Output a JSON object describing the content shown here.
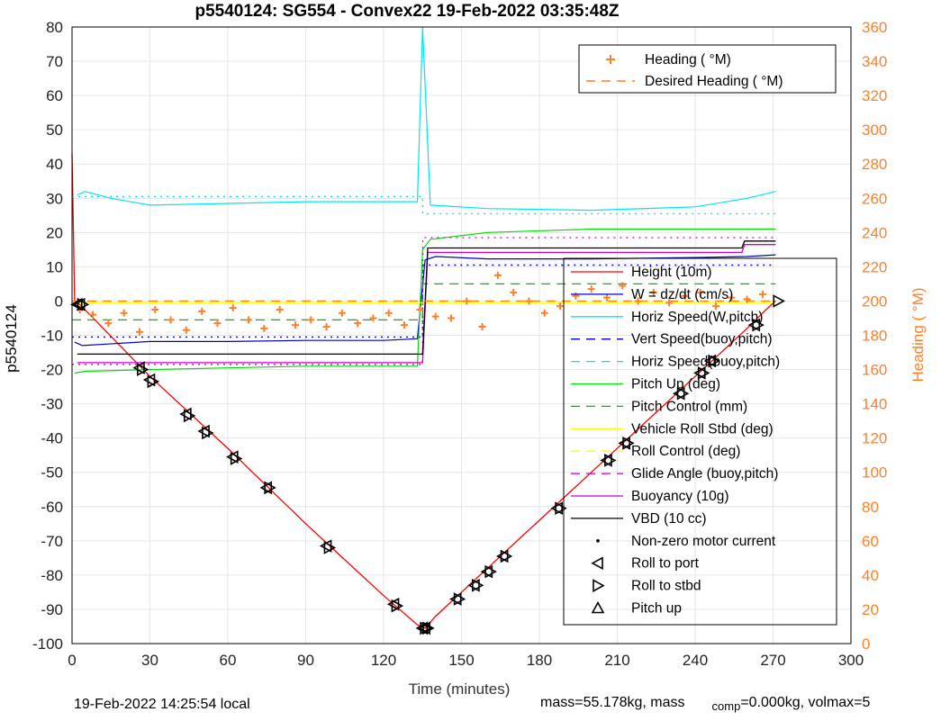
{
  "colors": {
    "height": "#ff0000",
    "w": "#0000cc",
    "horiz_speed": "#00e5ee",
    "vert_speed": "#0000ff",
    "pitch_up": "#00dd00",
    "pitch_control": "#00bb00",
    "roll_stbd": "#ffff00",
    "roll_control": "#ffff00",
    "glide_angle": "#cc00cc",
    "buoyancy": "#cc00cc",
    "vbd": "#000000",
    "heading": "#ff7f27",
    "right_axis": "#ff7f27"
  },
  "chart_data": {
    "type": "line",
    "title": "p5540124: SG554 - Convex22 19-Feb-2022 03:35:48Z",
    "xlabel": "Time (minutes)",
    "ylabel": "p5540124",
    "y2label": "Heading ( °M)",
    "xlim": [
      0,
      300
    ],
    "ylim": [
      -100,
      80
    ],
    "y2lim": [
      0,
      360
    ],
    "xticks": [
      "0",
      "30",
      "60",
      "90",
      "120",
      "150",
      "180",
      "210",
      "240",
      "270",
      "300"
    ],
    "yticks": [
      "80",
      "70",
      "60",
      "50",
      "40",
      "30",
      "20",
      "10",
      "0",
      "-10",
      "-20",
      "-30",
      "-40",
      "-50",
      "-60",
      "-70",
      "-80",
      "-90",
      "-100"
    ],
    "y2ticks": [
      "360",
      "340",
      "320",
      "300",
      "280",
      "260",
      "240",
      "220",
      "200",
      "180",
      "160",
      "140",
      "120",
      "100",
      "80",
      "60",
      "40",
      "20",
      "0"
    ],
    "grid": true,
    "legend_top": [
      {
        "label": "Heading ( °M)",
        "marker": "+"
      },
      {
        "label": "Desired Heading ( °M)",
        "marker": "dashed"
      }
    ],
    "legend_main": [
      {
        "label": "Height (10m)"
      },
      {
        "label": "W = dz/dt (cm/s)"
      },
      {
        "label": "Horiz Speed(W,pitch)"
      },
      {
        "label": "Vert Speed(buoy,pitch)"
      },
      {
        "label": "Horiz Speed(buoy,pitch)"
      },
      {
        "label": "Pitch Up (deg)"
      },
      {
        "label": "Pitch Control (mm)"
      },
      {
        "label": "Vehicle Roll Stbd (deg)"
      },
      {
        "label": "Roll Control (deg)"
      },
      {
        "label": "Glide Angle (buoy,pitch)"
      },
      {
        "label": "Buoyancy (10g)"
      },
      {
        "label": "VBD (10 cc)"
      },
      {
        "label": "Non-zero motor current"
      },
      {
        "label": "Roll to port"
      },
      {
        "label": "Roll to stbd"
      },
      {
        "label": "Pitch up"
      }
    ],
    "series": [
      {
        "name": "Height (10m)",
        "x": [
          0,
          1,
          3,
          30,
          60,
          90,
          120,
          133,
          136,
          140,
          160,
          180,
          200,
          220,
          240,
          260,
          268,
          271
        ],
        "y": [
          43,
          0,
          -1,
          -22,
          -43,
          -65,
          -86,
          -94.5,
          -95.5,
          -92,
          -78,
          -64,
          -50,
          -36,
          -22,
          -8,
          -2,
          0
        ]
      },
      {
        "name": "W = dz/dt (cm/s)",
        "x": [
          1,
          4,
          30,
          60,
          90,
          120,
          133,
          136,
          140,
          160,
          180,
          200,
          220,
          240,
          260,
          271
        ],
        "y": [
          -12,
          -13,
          -11.8,
          -11.8,
          -11.5,
          -11.5,
          -11,
          12,
          13,
          12.3,
          12.3,
          12.3,
          12.5,
          12.7,
          13,
          13.5
        ]
      },
      {
        "name": "Horiz Speed(W,pitch)",
        "x": [
          2,
          5,
          15,
          30,
          60,
          90,
          120,
          133,
          135,
          138,
          160,
          200,
          240,
          260,
          271
        ],
        "y": [
          31,
          32,
          30,
          28,
          28.5,
          29,
          29,
          29,
          80,
          28,
          27,
          26.5,
          27.5,
          30,
          32
        ]
      },
      {
        "name": "Vert Speed(buoy,pitch)",
        "x": [
          0,
          135,
          135.1,
          271
        ],
        "y": [
          -10.5,
          -10.5,
          10.5,
          10.5
        ]
      },
      {
        "name": "Horiz Speed(buoy,pitch)",
        "x": [
          0,
          135,
          135.1,
          271
        ],
        "y": [
          30.5,
          30.5,
          25.5,
          25.5
        ]
      },
      {
        "name": "Pitch Up (deg)",
        "x": [
          1,
          5,
          30,
          60,
          90,
          120,
          133,
          135,
          138,
          160,
          200,
          240,
          271
        ],
        "y": [
          -21,
          -20.5,
          -20,
          -19.5,
          -19,
          -19,
          -19,
          15,
          18,
          20,
          21,
          21,
          21
        ]
      },
      {
        "name": "Pitch Control (mm)",
        "x": [
          0,
          135,
          135.1,
          271
        ],
        "y": [
          -5.5,
          -5.5,
          5,
          5
        ]
      },
      {
        "name": "Vehicle Roll Stbd (deg)",
        "x": [
          0,
          271
        ],
        "y": [
          -0.5,
          -0.5
        ]
      },
      {
        "name": "Roll Control (deg)",
        "x": [
          0,
          271
        ],
        "y": [
          -0.5,
          -0.5
        ]
      },
      {
        "name": "Glide Angle (buoy,pitch)",
        "x": [
          0,
          135,
          135.1,
          271
        ],
        "y": [
          -18.5,
          -18.5,
          18.5,
          18.5
        ]
      },
      {
        "name": "Buoyancy (10g)",
        "x": [
          2,
          135,
          137,
          258,
          259,
          271
        ],
        "y": [
          -18,
          -18,
          14.2,
          14.2,
          16.5,
          16.5
        ]
      },
      {
        "name": "VBD (10 cc)",
        "x": [
          2,
          135,
          137,
          258,
          259,
          271
        ],
        "y": [
          -15.5,
          -15.5,
          15.5,
          15.5,
          17.5,
          17.5
        ]
      },
      {
        "name": "Heading ( °M)",
        "axis": "right",
        "x": [
          3,
          8,
          14,
          20,
          26,
          32,
          38,
          44,
          50,
          56,
          62,
          68,
          74,
          80,
          86,
          92,
          98,
          104,
          110,
          116,
          122,
          128,
          134,
          140,
          146,
          152,
          158,
          164,
          170,
          176,
          182,
          188,
          194,
          200,
          206,
          212,
          218,
          224,
          230,
          236,
          242,
          248,
          254,
          260,
          266
        ],
        "y": [
          195,
          192,
          187,
          193,
          182,
          195,
          189,
          183,
          194,
          187,
          196,
          189,
          184,
          195,
          186,
          189,
          185,
          193,
          187,
          190,
          193,
          186,
          195,
          191,
          190,
          200,
          185,
          215,
          205,
          200,
          193,
          197,
          203,
          207,
          202,
          209,
          200,
          205,
          199,
          203,
          205,
          197,
          202,
          201,
          204
        ]
      },
      {
        "name": "Desired Heading ( °M)",
        "axis": "right",
        "x": [
          0,
          271
        ],
        "y": [
          200,
          200
        ]
      },
      {
        "name": "Roll to port",
        "marker": "tri-left",
        "x": [
          2,
          3,
          26,
          30,
          44,
          51,
          62,
          75,
          98,
          124,
          135,
          136,
          148,
          155,
          160,
          166,
          187,
          206,
          213,
          234,
          242,
          246,
          263
        ],
        "y": [
          -1,
          -1,
          -19.5,
          -23,
          -33,
          -38,
          -45.5,
          -54.5,
          -71.5,
          -88.5,
          -95.5,
          -95.5,
          -87,
          -83,
          -79,
          -74.5,
          -60.5,
          -46.5,
          -41.5,
          -27,
          -21,
          -17.5,
          -7
        ]
      },
      {
        "name": "Roll to stbd",
        "marker": "tri-right",
        "x": [
          4,
          27,
          31,
          45,
          52,
          63,
          76,
          99,
          125,
          136,
          137,
          149,
          156,
          161,
          167,
          188,
          207,
          214,
          235,
          243,
          247,
          264,
          272
        ],
        "y": [
          -1,
          -20,
          -23.5,
          -33.5,
          -38.5,
          -46,
          -54.5,
          -72,
          -89,
          -95.5,
          -95.5,
          -87,
          -83,
          -79,
          -74.5,
          -60.5,
          -46.5,
          -41.5,
          -27,
          -21,
          -17.5,
          -7,
          0
        ]
      }
    ]
  },
  "footer": {
    "local_time": "19-Feb-2022 14:25:54 local",
    "mass": "mass=55.178kg, mass",
    "comp_sub": "comp",
    "rest": "=0.000kg, volmax=5"
  }
}
